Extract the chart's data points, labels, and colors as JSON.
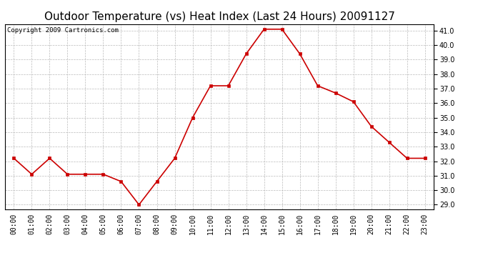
{
  "title": "Outdoor Temperature (vs) Heat Index (Last 24 Hours) 20091127",
  "copyright": "Copyright 2009 Cartronics.com",
  "x_labels": [
    "00:00",
    "01:00",
    "02:00",
    "03:00",
    "04:00",
    "05:00",
    "06:00",
    "07:00",
    "08:00",
    "09:00",
    "10:00",
    "11:00",
    "12:00",
    "13:00",
    "14:00",
    "15:00",
    "16:00",
    "17:00",
    "18:00",
    "19:00",
    "20:00",
    "21:00",
    "22:00",
    "23:00"
  ],
  "y_values": [
    32.2,
    31.1,
    32.2,
    31.1,
    31.1,
    31.1,
    30.6,
    29.0,
    30.6,
    32.2,
    35.0,
    37.2,
    37.2,
    39.4,
    41.1,
    41.1,
    39.4,
    37.2,
    36.7,
    36.1,
    34.4,
    33.3,
    32.2,
    32.2
  ],
  "ylim_min": 28.7,
  "ylim_max": 41.45,
  "y_ticks": [
    29.0,
    30.0,
    31.0,
    32.0,
    33.0,
    34.0,
    35.0,
    36.0,
    37.0,
    38.0,
    39.0,
    40.0,
    41.0
  ],
  "line_color": "#cc0000",
  "marker": "s",
  "marker_size": 2.5,
  "marker_color": "#cc0000",
  "background_color": "#ffffff",
  "grid_color": "#bbbbbb",
  "title_fontsize": 11,
  "tick_fontsize": 7,
  "copyright_fontsize": 6.5
}
